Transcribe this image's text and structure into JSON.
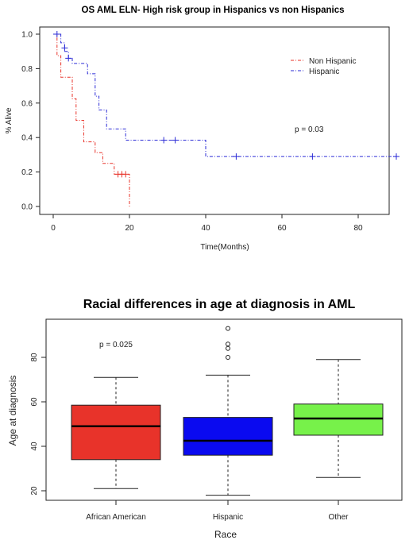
{
  "chart_data": [
    {
      "type": "line",
      "subtype": "kaplan-meier",
      "title": "OS AML ELN- High risk group in Hispanics vs non Hispanics",
      "xlabel": "Time(Months)",
      "ylabel": "% Alive",
      "xlim": [
        0,
        92
      ],
      "ylim": [
        0,
        1
      ],
      "xticks": [
        "0",
        "20",
        "40",
        "60",
        "80"
      ],
      "yticks": [
        "0.0",
        "0.2",
        "0.4",
        "0.6",
        "0.8",
        "1.0"
      ],
      "annotation": "p = 0.03",
      "legend_position": "top-right",
      "series": [
        {
          "name": "Non Hispanic",
          "color": "#e8332a",
          "line_style": "dot-dash",
          "x": [
            0,
            1,
            2,
            5,
            6,
            8,
            11,
            13,
            16,
            20,
            20
          ],
          "y": [
            1.0,
            0.875,
            0.75,
            0.625,
            0.5,
            0.375,
            0.3125,
            0.25,
            0.1875,
            0.1875,
            0.0
          ],
          "censor_x": [
            17,
            18,
            19
          ],
          "censor_y": [
            0.1875,
            0.1875,
            0.1875
          ]
        },
        {
          "name": "Hispanic",
          "color": "#2b2bd6",
          "line_style": "dot-dash",
          "x": [
            0,
            2,
            3,
            4,
            5,
            9,
            11,
            12,
            14,
            19,
            40,
            90
          ],
          "y": [
            1.0,
            0.95,
            0.9,
            0.86,
            0.83,
            0.77,
            0.64,
            0.56,
            0.45,
            0.385,
            0.29,
            0.29
          ],
          "censor_x": [
            1,
            3,
            4,
            29,
            32,
            48,
            68,
            90
          ],
          "censor_y": [
            1.0,
            0.92,
            0.86,
            0.385,
            0.385,
            0.29,
            0.29,
            0.29
          ]
        }
      ]
    },
    {
      "type": "boxplot",
      "title": "Racial differences in age at diagnosis in AML",
      "xlabel": "Race",
      "ylabel": "Age at diagnosis",
      "ylim": [
        15,
        97
      ],
      "yticks": [
        "20",
        "40",
        "60",
        "80"
      ],
      "annotation": "p = 0.025",
      "categories": [
        "African American",
        "Hispanic",
        "Other"
      ],
      "boxes": [
        {
          "category": "African American",
          "color": "#e8332a",
          "min": 21,
          "q1": 34,
          "median": 49,
          "q3": 58.5,
          "max": 71,
          "outliers": []
        },
        {
          "category": "Hispanic",
          "color": "#0a0af0",
          "min": 18,
          "q1": 36,
          "median": 42.5,
          "q3": 53,
          "max": 72,
          "outliers": [
            80,
            84,
            86,
            93
          ]
        },
        {
          "category": "Other",
          "color": "#77f14a",
          "min": 26,
          "q1": 45,
          "median": 52.5,
          "q3": 59,
          "max": 79,
          "outliers": []
        }
      ]
    }
  ]
}
